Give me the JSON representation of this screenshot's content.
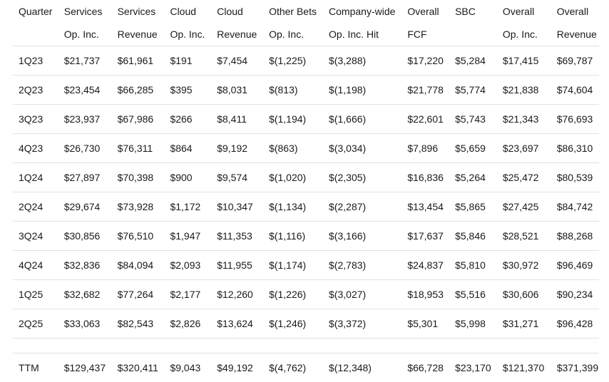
{
  "headers": [
    {
      "line1": "Quarter",
      "line2": ""
    },
    {
      "line1": "Services",
      "line2": "Op. Inc."
    },
    {
      "line1": "Services",
      "line2": "Revenue"
    },
    {
      "line1": "Cloud",
      "line2": "Op. Inc."
    },
    {
      "line1": "Cloud",
      "line2": "Revenue"
    },
    {
      "line1": "Other Bets",
      "line2": "Op. Inc."
    },
    {
      "line1": "Company-wide",
      "line2": "Op. Inc. Hit"
    },
    {
      "line1": "Overall",
      "line2": "FCF"
    },
    {
      "line1": "SBC",
      "line2": ""
    },
    {
      "line1": "Overall",
      "line2": "Op. Inc."
    },
    {
      "line1": "Overall",
      "line2": "Revenue"
    }
  ],
  "rows": [
    [
      "1Q23",
      "$21,737",
      "$61,961",
      "$191",
      "$7,454",
      "$(1,225)",
      "$(3,288)",
      "$17,220",
      "$5,284",
      "$17,415",
      "$69,787"
    ],
    [
      "2Q23",
      "$23,454",
      "$66,285",
      "$395",
      "$8,031",
      "$(813)",
      "$(1,198)",
      "$21,778",
      "$5,774",
      "$21,838",
      "$74,604"
    ],
    [
      "3Q23",
      "$23,937",
      "$67,986",
      "$266",
      "$8,411",
      "$(1,194)",
      "$(1,666)",
      "$22,601",
      "$5,743",
      "$21,343",
      "$76,693"
    ],
    [
      "4Q23",
      "$26,730",
      "$76,311",
      "$864",
      "$9,192",
      "$(863)",
      "$(3,034)",
      "$7,896",
      "$5,659",
      "$23,697",
      "$86,310"
    ],
    [
      "1Q24",
      "$27,897",
      "$70,398",
      "$900",
      "$9,574",
      "$(1,020)",
      "$(2,305)",
      "$16,836",
      "$5,264",
      "$25,472",
      "$80,539"
    ],
    [
      "2Q24",
      "$29,674",
      "$73,928",
      "$1,172",
      "$10,347",
      "$(1,134)",
      "$(2,287)",
      "$13,454",
      "$5,865",
      "$27,425",
      "$84,742"
    ],
    [
      "3Q24",
      "$30,856",
      "$76,510",
      "$1,947",
      "$11,353",
      "$(1,116)",
      "$(3,166)",
      "$17,637",
      "$5,846",
      "$28,521",
      "$88,268"
    ],
    [
      "4Q24",
      "$32,836",
      "$84,094",
      "$2,093",
      "$11,955",
      "$(1,174)",
      "$(2,783)",
      "$24,837",
      "$5,810",
      "$30,972",
      "$96,469"
    ],
    [
      "1Q25",
      "$32,682",
      "$77,264",
      "$2,177",
      "$12,260",
      "$(1,226)",
      "$(3,027)",
      "$18,953",
      "$5,516",
      "$30,606",
      "$90,234"
    ],
    [
      "2Q25",
      "$33,063",
      "$82,543",
      "$2,826",
      "$13,624",
      "$(1,246)",
      "$(3,372)",
      "$5,301",
      "$5,998",
      "$31,271",
      "$96,428"
    ]
  ],
  "total": [
    "TTM",
    "$129,437",
    "$320,411",
    "$9,043",
    "$49,192",
    "$(4,762)",
    "$(12,348)",
    "$66,728",
    "$23,170",
    "$121,370",
    "$371,399"
  ]
}
